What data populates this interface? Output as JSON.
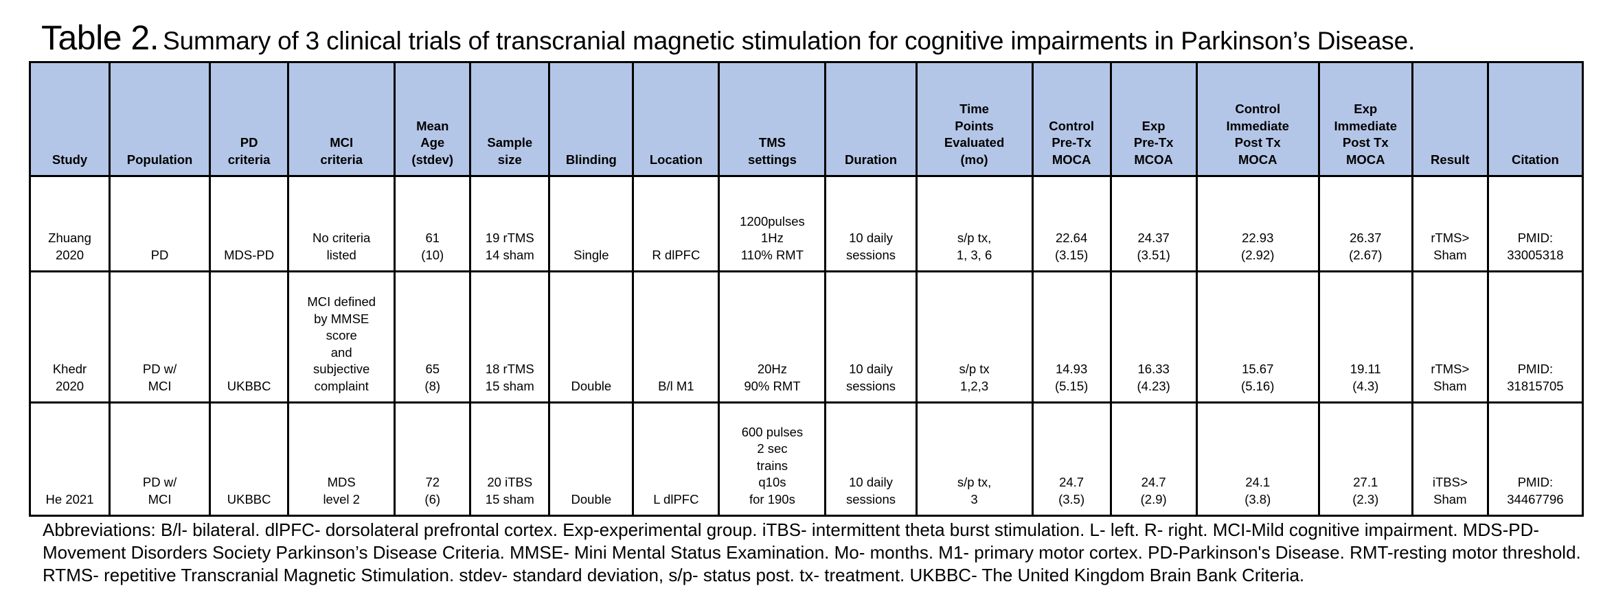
{
  "title": {
    "lead": "Table 2.",
    "rest": "Summary of 3 clinical trials of transcranial magnetic stimulation for cognitive impairments in Parkinson’s Disease."
  },
  "table": {
    "headers": [
      "Study",
      "Population",
      "PD\ncriteria",
      "MCI\ncriteria",
      "Mean\nAge\n(stdev)",
      "Sample\nsize",
      "Blinding",
      "Location",
      "TMS\nsettings",
      "Duration",
      "Time\nPoints\nEvaluated\n(mo)",
      "Control\nPre-Tx\nMOCA",
      "Exp\nPre-Tx\nMCOA",
      "Control\nImmediate\nPost Tx\nMOCA",
      "Exp\nImmediate\nPost Tx\nMOCA",
      "Result",
      "Citation"
    ],
    "rows": [
      {
        "cells": [
          "Zhuang\n2020",
          "PD",
          "MDS-PD",
          "No criteria\nlisted",
          "61\n(10)",
          "19 rTMS\n14 sham",
          "Single",
          "R dlPFC",
          "1200pulses\n1Hz\n110% RMT",
          "10 daily\nsessions",
          "s/p tx,\n1, 3, 6",
          "22.64\n(3.15)",
          "24.37\n(3.51)",
          "22.93\n(2.92)",
          "26.37\n(2.67)",
          "rTMS>\nSham",
          "PMID:\n33005318"
        ]
      },
      {
        "cells": [
          "Khedr\n2020",
          "PD w/\nMCI",
          "UKBBC",
          "MCI defined\nby MMSE\nscore\nand\nsubjective\ncomplaint",
          "65\n(8)",
          "18 rTMS\n15 sham",
          "Double",
          "B/l M1",
          "20Hz\n90% RMT",
          "10 daily\nsessions",
          "s/p tx\n1,2,3",
          "14.93\n(5.15)",
          "16.33\n(4.23)",
          "15.67\n(5.16)",
          "19.11\n(4.3)",
          "rTMS>\nSham",
          "PMID:\n31815705"
        ]
      },
      {
        "cells": [
          "He 2021",
          "PD w/\nMCI",
          "UKBBC",
          "MDS\nlevel 2",
          "72\n(6)",
          "20 iTBS\n15 sham",
          "Double",
          "L dlPFC",
          "600 pulses\n2 sec\ntrains\nq10s\nfor 190s",
          "10 daily\nsessions",
          "s/p tx,\n3",
          "24.7\n(3.5)",
          "24.7\n(2.9)",
          "24.1\n(3.8)",
          "27.1\n(2.3)",
          "iTBS>\nSham",
          "PMID:\n34467796"
        ]
      }
    ]
  },
  "abbreviations": "Abbreviations: B/l- bilateral. dlPFC- dorsolateral prefrontal cortex. Exp-experimental group. iTBS- intermittent theta burst stimulation. L- left. R- right. MCI-Mild cognitive impairment. MDS-PD-\nMovement Disorders Society Parkinson’s Disease Criteria. MMSE- Mini Mental Status Examination. Mo- months. M1- primary motor cortex. PD-Parkinson's Disease.  RMT-resting motor threshold.\nRTMS- repetitive Transcranial Magnetic Stimulation.  stdev- standard deviation, s/p- status post. tx- treatment. UKBBC- The United Kingdom Brain Bank Criteria.",
  "colors": {
    "header_background": "#b4c6e7",
    "border": "#000000",
    "text": "#000000"
  }
}
